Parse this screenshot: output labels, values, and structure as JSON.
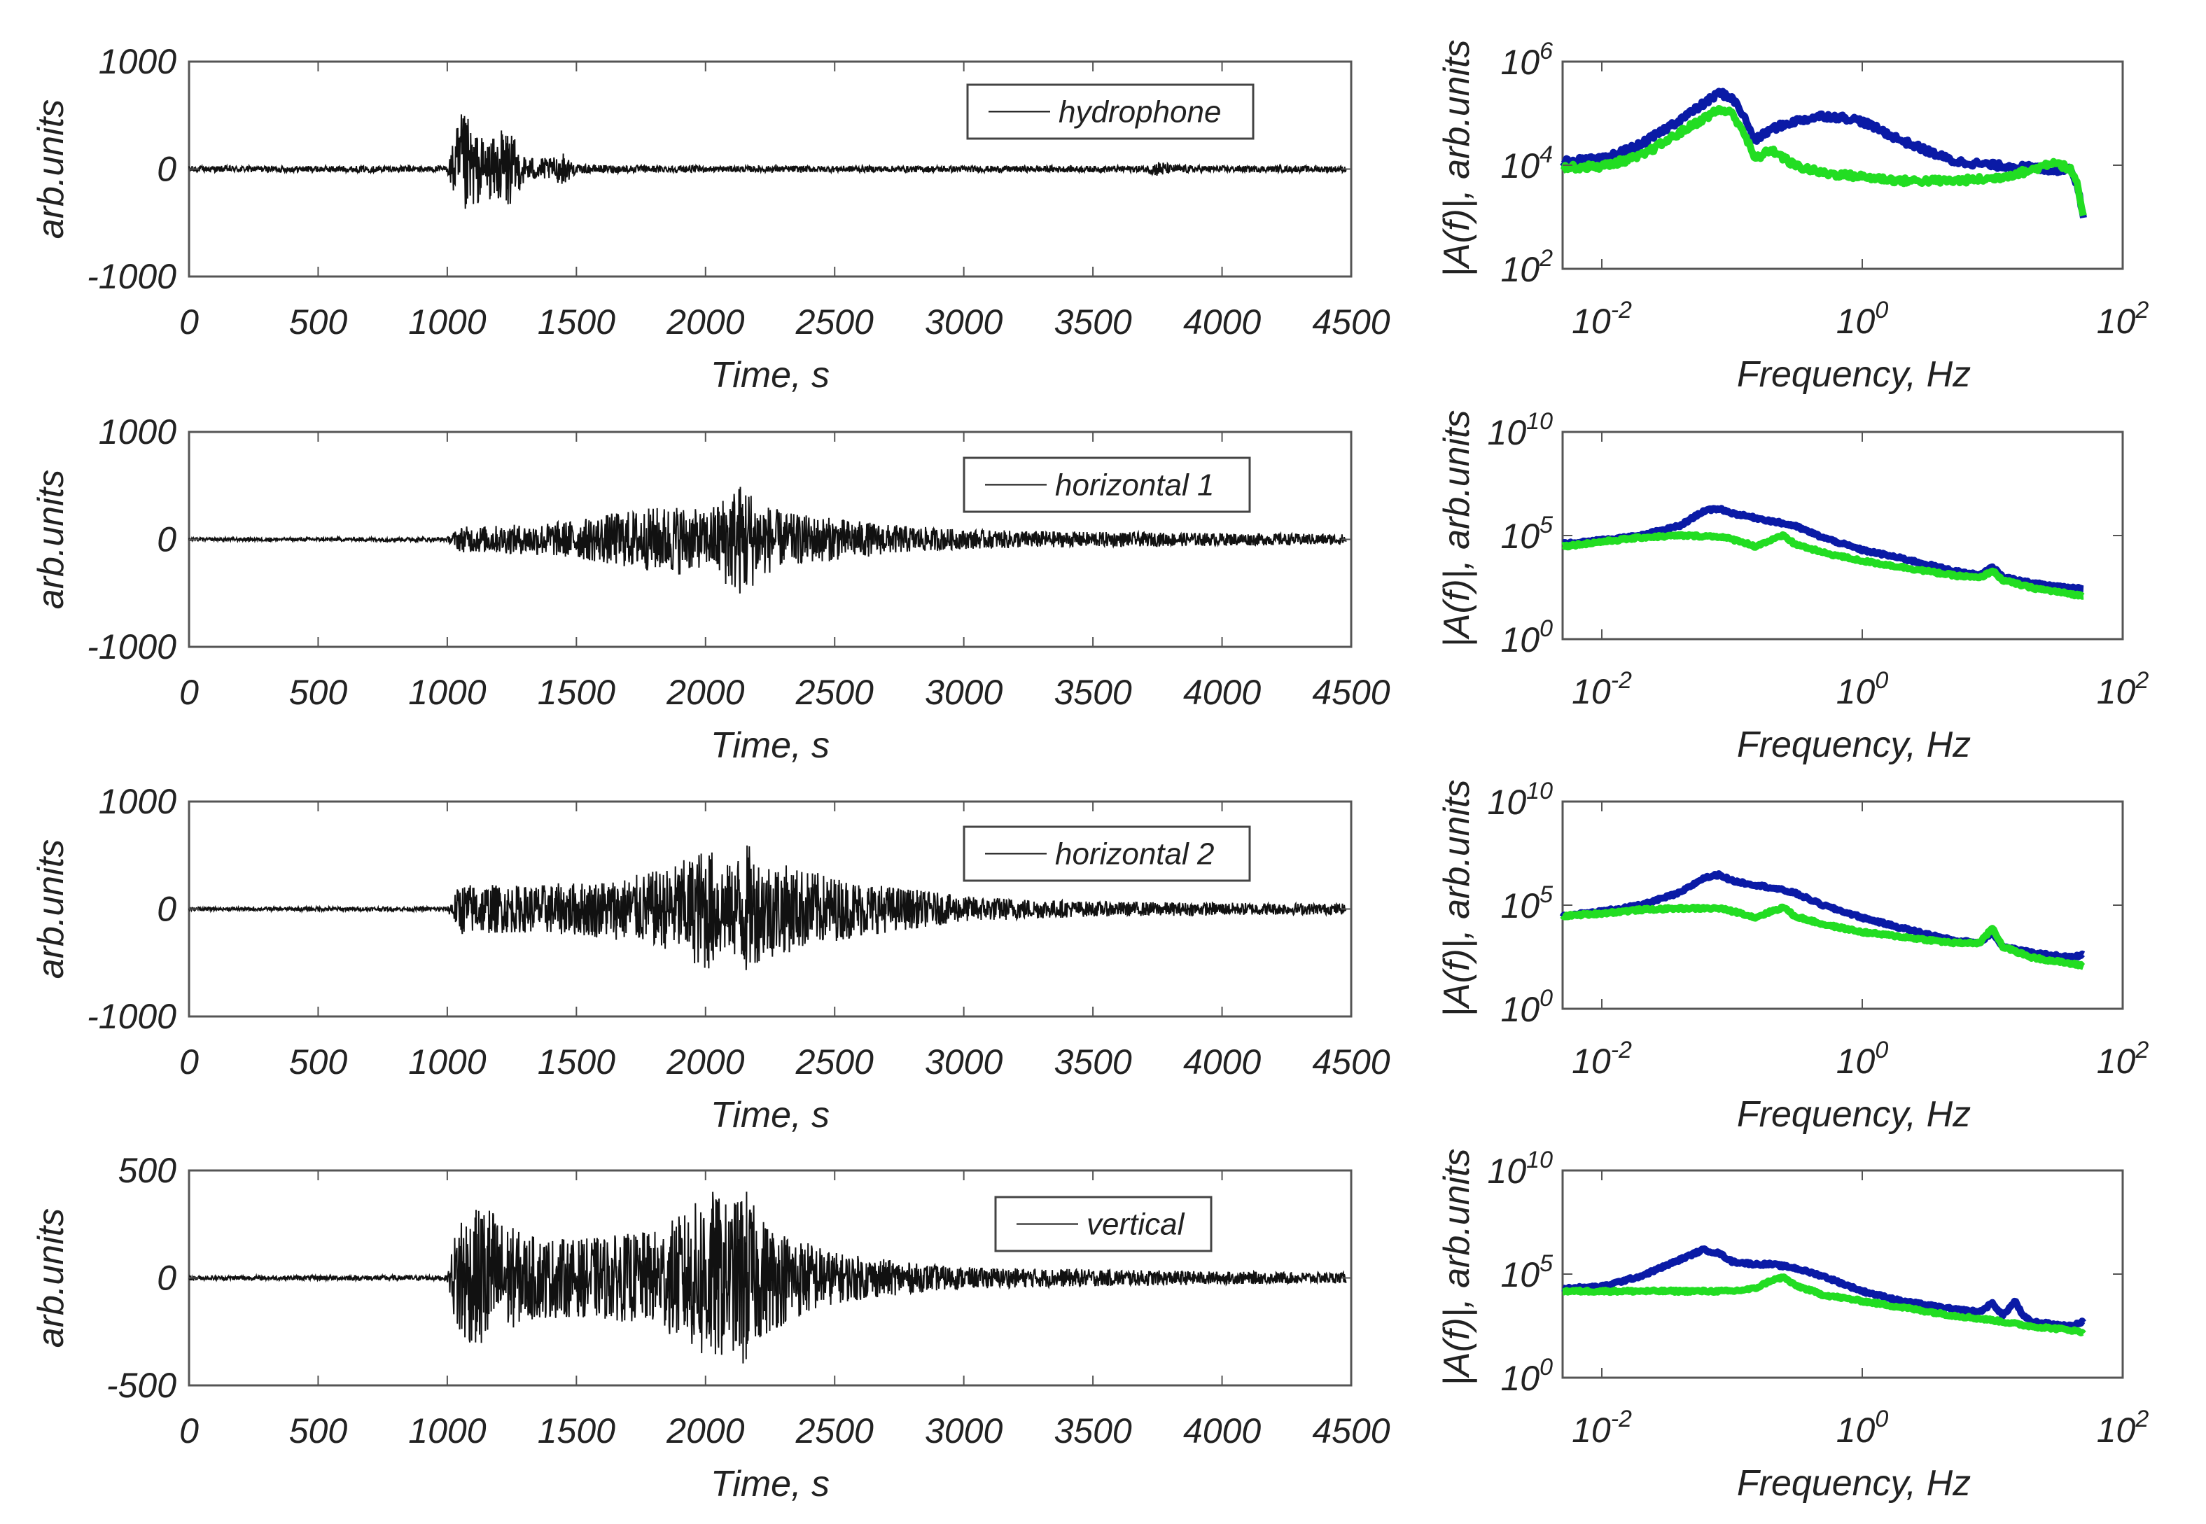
{
  "chart_data": [
    {
      "type": "line",
      "xlabel": "Time, s",
      "ylabel": "arb.units",
      "xlim": [
        0,
        4500
      ],
      "ylim": [
        -1000,
        1000
      ],
      "xticks": [
        0,
        500,
        1000,
        1500,
        2000,
        2500,
        3000,
        3500,
        4000,
        4500
      ],
      "xtick_labels": [
        "0",
        "500",
        "1000",
        "1500",
        "2000",
        "2500",
        "3000",
        "3500",
        "4000",
        "4500"
      ],
      "yticks": [
        -1000,
        0,
        1000
      ],
      "ytick_labels": [
        "-1000",
        "0",
        "1000"
      ],
      "legend": "top-right",
      "series": [
        {
          "name": "hydrophone",
          "color": "#111111",
          "envelope": {
            "x": [
              0,
              1000,
              1050,
              1080,
              1100,
              1150,
              1200,
              1220,
              1300,
              1400,
              1450,
              1500,
              2000,
              3000,
              3700,
              3760,
              3800,
              4000,
              4480
            ],
            "amplitude": [
              30,
              30,
              520,
              480,
              360,
              280,
              300,
              450,
              120,
              100,
              150,
              40,
              30,
              30,
              30,
              80,
              40,
              30,
              30
            ]
          }
        }
      ]
    },
    {
      "type": "line",
      "xlabel": "Time, s",
      "ylabel": "arb.units",
      "xlim": [
        0,
        4500
      ],
      "ylim": [
        -1000,
        1000
      ],
      "xticks": [
        0,
        500,
        1000,
        1500,
        2000,
        2500,
        3000,
        3500,
        4000,
        4500
      ],
      "xtick_labels": [
        "0",
        "500",
        "1000",
        "1500",
        "2000",
        "2500",
        "3000",
        "3500",
        "4000",
        "4500"
      ],
      "yticks": [
        -1000,
        0,
        1000
      ],
      "ytick_labels": [
        "-1000",
        "0",
        "1000"
      ],
      "legend": "top-right",
      "series": [
        {
          "name": "horizontal 1",
          "color": "#111111",
          "envelope": {
            "x": [
              0,
              1000,
              1050,
              1300,
              1500,
              1650,
              1800,
              1900,
              2000,
              2100,
              2150,
              2200,
              2300,
              2500,
              2700,
              3000,
              3500,
              4000,
              4480
            ],
            "amplitude": [
              15,
              20,
              120,
              140,
              180,
              250,
              300,
              330,
              250,
              480,
              560,
              380,
              250,
              200,
              140,
              90,
              70,
              60,
              50
            ]
          }
        }
      ]
    },
    {
      "type": "line",
      "xlabel": "Time, s",
      "ylabel": "arb.units",
      "xlim": [
        0,
        4500
      ],
      "ylim": [
        -1000,
        1000
      ],
      "xticks": [
        0,
        500,
        1000,
        1500,
        2000,
        2500,
        3000,
        3500,
        4000,
        4500
      ],
      "xtick_labels": [
        "0",
        "500",
        "1000",
        "1500",
        "2000",
        "2500",
        "3000",
        "3500",
        "4000",
        "4500"
      ],
      "yticks": [
        -1000,
        0,
        1000
      ],
      "ytick_labels": [
        "-1000",
        "0",
        "1000"
      ],
      "legend": "top-right",
      "series": [
        {
          "name": "horizontal 2",
          "color": "#111111",
          "envelope": {
            "x": [
              0,
              1000,
              1050,
              1300,
              1500,
              1700,
              1850,
              1950,
              2000,
              2100,
              2150,
              2200,
              2300,
              2500,
              2700,
              3000,
              3500,
              4000,
              4480
            ],
            "amplitude": [
              15,
              20,
              240,
              220,
              250,
              300,
              380,
              500,
              600,
              400,
              650,
              500,
              420,
              300,
              220,
              120,
              70,
              60,
              50
            ]
          }
        }
      ]
    },
    {
      "type": "line",
      "xlabel": "Time, s",
      "ylabel": "arb.units",
      "xlim": [
        0,
        4500
      ],
      "ylim": [
        -500,
        500
      ],
      "xticks": [
        0,
        500,
        1000,
        1500,
        2000,
        2500,
        3000,
        3500,
        4000,
        4500
      ],
      "xtick_labels": [
        "0",
        "500",
        "1000",
        "1500",
        "2000",
        "2500",
        "3000",
        "3500",
        "4000",
        "4500"
      ],
      "yticks": [
        -500,
        0,
        500
      ],
      "ytick_labels": [
        "-500",
        "0",
        "500"
      ],
      "legend": "top-right",
      "series": [
        {
          "name": "vertical",
          "color": "#111111",
          "envelope": {
            "x": [
              0,
              1000,
              1050,
              1100,
              1150,
              1200,
              1300,
              1500,
              1800,
              1950,
              2000,
              2100,
              2150,
              2200,
              2300,
              2500,
              2800,
              3000,
              3500,
              4000,
              4480
            ],
            "amplitude": [
              10,
              12,
              350,
              300,
              380,
              280,
              200,
              180,
              220,
              330,
              440,
              330,
              450,
              300,
              220,
              120,
              70,
              50,
              40,
              30,
              25
            ]
          }
        }
      ]
    },
    {
      "type": "line",
      "log_x": true,
      "log_y": true,
      "xlabel": "Frequency, Hz",
      "ylabel": "|A(f)|, arb.units",
      "xlim": [
        0.005,
        100
      ],
      "ylim": [
        100,
        1000000
      ],
      "xticks": [
        0.01,
        1,
        100
      ],
      "xtick_labels": [
        {
          "base": "10",
          "exp": "-2"
        },
        {
          "base": "10",
          "exp": "0"
        },
        {
          "base": "10",
          "exp": "2"
        }
      ],
      "yticks": [
        100,
        10000,
        1000000
      ],
      "ytick_labels": [
        {
          "base": "10",
          "exp": "2"
        },
        {
          "base": "10",
          "exp": "4"
        },
        {
          "base": "10",
          "exp": "6"
        }
      ],
      "series": [
        {
          "color": "#0a1aa6",
          "x": [
            0.005,
            0.01,
            0.02,
            0.05,
            0.08,
            0.1,
            0.12,
            0.15,
            0.2,
            0.3,
            0.5,
            0.8,
            1,
            2,
            3,
            5,
            10,
            20,
            30,
            40,
            45,
            50
          ],
          "y": [
            12000,
            13000,
            25000,
            110000,
            250000,
            200000,
            100000,
            30000,
            50000,
            70000,
            90000,
            80000,
            70000,
            30000,
            20000,
            12000,
            10000,
            9000,
            8000,
            9000,
            4000,
            1000
          ]
        },
        {
          "color": "#22dd22",
          "x": [
            0.005,
            0.01,
            0.02,
            0.05,
            0.08,
            0.1,
            0.12,
            0.15,
            0.2,
            0.3,
            0.5,
            1,
            2,
            5,
            10,
            20,
            30,
            40,
            45,
            50
          ],
          "y": [
            9000,
            9500,
            15000,
            60000,
            120000,
            100000,
            50000,
            13000,
            20000,
            10000,
            7000,
            6000,
            5000,
            5000,
            5500,
            8000,
            12000,
            8000,
            4000,
            1000
          ]
        }
      ]
    },
    {
      "type": "line",
      "log_x": true,
      "log_y": true,
      "xlabel": "Frequency, Hz",
      "ylabel": "|A(f)|, arb.units",
      "xlim": [
        0.005,
        100
      ],
      "ylim": [
        1,
        10000000000
      ],
      "xticks": [
        0.01,
        1,
        100
      ],
      "xtick_labels": [
        {
          "base": "10",
          "exp": "-2"
        },
        {
          "base": "10",
          "exp": "0"
        },
        {
          "base": "10",
          "exp": "2"
        }
      ],
      "yticks": [
        1,
        100000,
        10000000000
      ],
      "ytick_labels": [
        {
          "base": "10",
          "exp": "0"
        },
        {
          "base": "10",
          "exp": "5"
        },
        {
          "base": "10",
          "exp": "10"
        }
      ],
      "series": [
        {
          "color": "#0a1aa6",
          "x": [
            0.005,
            0.01,
            0.02,
            0.04,
            0.06,
            0.08,
            0.1,
            0.2,
            0.3,
            0.5,
            1,
            2,
            5,
            8,
            10,
            12,
            20,
            40,
            50
          ],
          "y": [
            40000,
            60000,
            100000,
            300000,
            1500000,
            2000000,
            1200000,
            500000,
            300000,
            80000,
            20000,
            8000,
            2000,
            1200,
            3000,
            1000,
            500,
            300,
            300
          ]
        },
        {
          "color": "#22dd22",
          "x": [
            0.005,
            0.01,
            0.02,
            0.04,
            0.08,
            0.12,
            0.15,
            0.2,
            0.25,
            0.3,
            0.5,
            1,
            2,
            5,
            8,
            10,
            12,
            20,
            40,
            50
          ],
          "y": [
            30000,
            50000,
            80000,
            100000,
            90000,
            50000,
            30000,
            60000,
            100000,
            40000,
            15000,
            6000,
            3000,
            1200,
            900,
            2000,
            700,
            300,
            150,
            120
          ]
        }
      ]
    },
    {
      "type": "line",
      "log_x": true,
      "log_y": true,
      "xlabel": "Frequency, Hz",
      "ylabel": "|A(f)|, arb.units",
      "xlim": [
        0.005,
        100
      ],
      "ylim": [
        1,
        10000000000
      ],
      "xticks": [
        0.01,
        1,
        100
      ],
      "xtick_labels": [
        {
          "base": "10",
          "exp": "-2"
        },
        {
          "base": "10",
          "exp": "0"
        },
        {
          "base": "10",
          "exp": "2"
        }
      ],
      "yticks": [
        1,
        100000,
        10000000000
      ],
      "ytick_labels": [
        {
          "base": "10",
          "exp": "0"
        },
        {
          "base": "10",
          "exp": "5"
        },
        {
          "base": "10",
          "exp": "10"
        }
      ],
      "series": [
        {
          "color": "#0a1aa6",
          "x": [
            0.005,
            0.01,
            0.02,
            0.04,
            0.06,
            0.08,
            0.1,
            0.2,
            0.3,
            0.5,
            1,
            2,
            5,
            8,
            10,
            12,
            20,
            40,
            50
          ],
          "y": [
            30000,
            50000,
            100000,
            400000,
            2000000,
            3000000,
            1500000,
            700000,
            400000,
            100000,
            25000,
            8000,
            2000,
            1500,
            5000,
            1000,
            500,
            300,
            400
          ]
        },
        {
          "color": "#22dd22",
          "x": [
            0.005,
            0.01,
            0.02,
            0.04,
            0.08,
            0.12,
            0.15,
            0.2,
            0.25,
            0.3,
            0.5,
            1,
            2,
            5,
            8,
            10,
            12,
            20,
            40,
            50
          ],
          "y": [
            30000,
            40000,
            60000,
            70000,
            70000,
            40000,
            25000,
            50000,
            80000,
            30000,
            12000,
            5000,
            3000,
            1500,
            1500,
            8000,
            1000,
            300,
            150,
            120
          ]
        }
      ]
    },
    {
      "type": "line",
      "log_x": true,
      "log_y": true,
      "xlabel": "Frequency, Hz",
      "ylabel": "|A(f)|, arb.units",
      "xlim": [
        0.005,
        100
      ],
      "ylim": [
        1,
        10000000000
      ],
      "xticks": [
        0.01,
        1,
        100
      ],
      "xtick_labels": [
        {
          "base": "10",
          "exp": "-2"
        },
        {
          "base": "10",
          "exp": "0"
        },
        {
          "base": "10",
          "exp": "2"
        }
      ],
      "yticks": [
        1,
        100000,
        10000000000
      ],
      "ytick_labels": [
        {
          "base": "10",
          "exp": "0"
        },
        {
          "base": "10",
          "exp": "5"
        },
        {
          "base": "10",
          "exp": "10"
        }
      ],
      "series": [
        {
          "color": "#0a1aa6",
          "x": [
            0.005,
            0.01,
            0.02,
            0.04,
            0.06,
            0.08,
            0.1,
            0.15,
            0.2,
            0.3,
            0.5,
            1,
            2,
            5,
            8,
            10,
            12,
            15,
            17,
            20,
            40,
            50
          ],
          "y": [
            20000,
            25000,
            80000,
            500000,
            1500000,
            1000000,
            400000,
            300000,
            300000,
            200000,
            80000,
            15000,
            5000,
            2000,
            1500,
            4000,
            1000,
            5000,
            1000,
            500,
            300,
            500
          ]
        },
        {
          "color": "#22dd22",
          "x": [
            0.005,
            0.01,
            0.02,
            0.05,
            0.1,
            0.15,
            0.2,
            0.25,
            0.3,
            0.5,
            1,
            2,
            5,
            10,
            20,
            40,
            50
          ],
          "y": [
            15000,
            15000,
            15000,
            15000,
            15000,
            20000,
            50000,
            70000,
            30000,
            10000,
            5000,
            2500,
            1000,
            600,
            300,
            200,
            150
          ]
        }
      ]
    }
  ]
}
